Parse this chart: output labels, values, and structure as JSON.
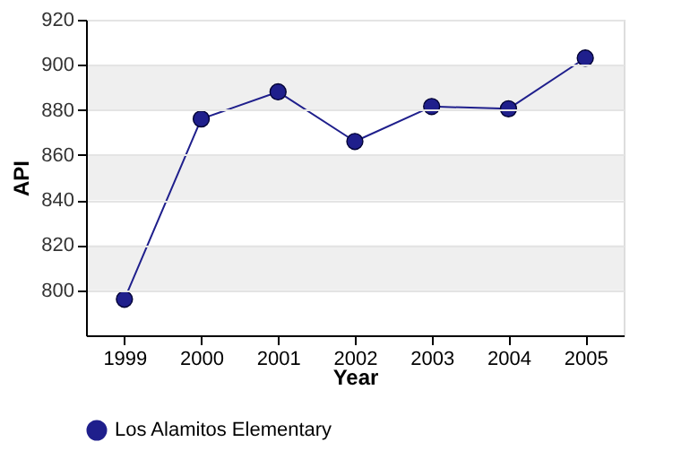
{
  "chart_data": {
    "type": "line",
    "xlabel": "Year",
    "ylabel": "API",
    "categories": [
      "1999",
      "2000",
      "2001",
      "2002",
      "2003",
      "2004",
      "2005"
    ],
    "series": [
      {
        "name": "Los Alamitos Elementary",
        "color": "#1f1f8c",
        "values": [
          796,
          876,
          888,
          866,
          881.5,
          880.5,
          903
        ]
      }
    ],
    "ylim": [
      780,
      920
    ],
    "yticks": [
      800,
      820,
      840,
      860,
      880,
      900,
      920
    ],
    "grid": "y",
    "legend": "bottom",
    "marker": "circle",
    "line_style": "solid"
  }
}
